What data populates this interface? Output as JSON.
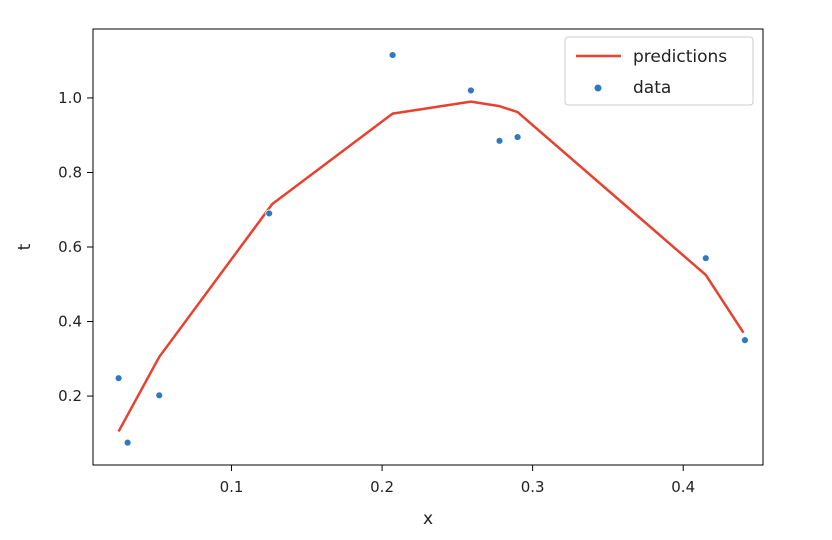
{
  "chart_data": {
    "type": "scatter",
    "xlabel": "x",
    "ylabel": "t",
    "xlim": [
      0.008,
      0.453
    ],
    "ylim": [
      0.015,
      1.185
    ],
    "xticks": [
      0.1,
      0.2,
      0.3,
      0.4
    ],
    "xtick_labels": [
      "0.1",
      "0.2",
      "0.3",
      "0.4"
    ],
    "yticks": [
      0.2,
      0.4,
      0.6,
      0.8,
      1.0
    ],
    "ytick_labels": [
      "0.2",
      "0.4",
      "0.6",
      "0.8",
      "1.0"
    ],
    "grid": false,
    "legend_position": "top-right",
    "series": [
      {
        "name": "predictions",
        "kind": "line",
        "color": "#e8412f",
        "x": [
          0.025,
          0.052,
          0.127,
          0.207,
          0.259,
          0.278,
          0.29,
          0.415,
          0.44
        ],
        "y": [
          0.105,
          0.305,
          0.715,
          0.958,
          0.99,
          0.978,
          0.962,
          0.525,
          0.37
        ]
      },
      {
        "name": "data",
        "kind": "scatter",
        "color": "#2f7abf",
        "x": [
          0.025,
          0.031,
          0.052,
          0.125,
          0.207,
          0.259,
          0.278,
          0.29,
          0.415,
          0.441
        ],
        "y": [
          0.248,
          0.075,
          0.202,
          0.69,
          1.115,
          1.02,
          0.885,
          0.895,
          0.57,
          0.35
        ]
      }
    ]
  }
}
